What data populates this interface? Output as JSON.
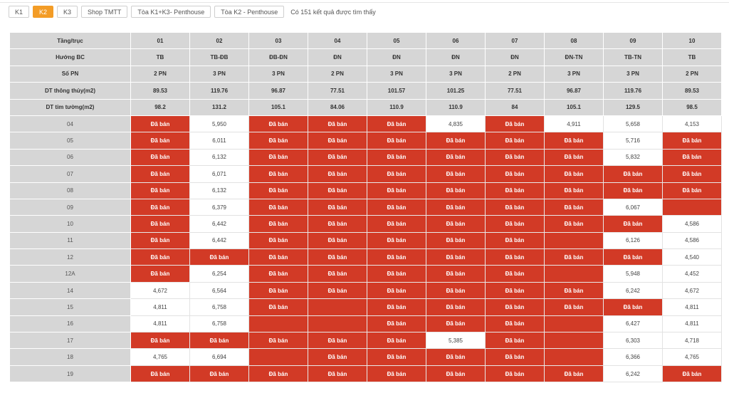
{
  "tabs": [
    "K1",
    "K2",
    "K3",
    "Shop TMTT",
    "Tòa K1+K3- Penthouse",
    "Tòa K2 - Penthouse"
  ],
  "active_tab": 1,
  "result_text": "Có 151 kết quả được tìm thấy",
  "sold_label": "Đã bán",
  "colors": {
    "sold": "#d23a26",
    "active_tab": "#f39c26",
    "header_bg": "#d6d6d6"
  },
  "header_rows": [
    [
      "Tầng/trục",
      "01",
      "02",
      "03",
      "04",
      "05",
      "06",
      "07",
      "08",
      "09",
      "10"
    ],
    [
      "Hướng BC",
      "TB",
      "TB-ĐB",
      "ĐB-ĐN",
      "ĐN",
      "ĐN",
      "ĐN",
      "ĐN",
      "ĐN-TN",
      "TB-TN",
      "TB"
    ],
    [
      "Số PN",
      "2 PN",
      "3 PN",
      "3 PN",
      "2 PN",
      "3 PN",
      "3 PN",
      "2 PN",
      "3 PN",
      "3 PN",
      "2 PN"
    ],
    [
      "DT thông thủy(m2)",
      "89.53",
      "119.76",
      "96.87",
      "77.51",
      "101.57",
      "101.25",
      "77.51",
      "96.87",
      "119.76",
      "89.53"
    ],
    [
      "DT tim tường(m2)",
      "98.2",
      "131.2",
      "105.1",
      "84.06",
      "110.9",
      "110.9",
      "84",
      "105.1",
      "129.5",
      "98.5"
    ]
  ],
  "floors": [
    {
      "floor": "04",
      "cells": [
        "S",
        "5,950",
        "S",
        "S",
        "S",
        "4,835",
        "S",
        "4,911",
        "5,658",
        "4,153"
      ]
    },
    {
      "floor": "05",
      "cells": [
        "S",
        "6,011",
        "S",
        "S",
        "S",
        "S",
        "S",
        "S",
        "5,716",
        "S"
      ]
    },
    {
      "floor": "06",
      "cells": [
        "S",
        "6,132",
        "S",
        "S",
        "S",
        "S",
        "S",
        "S",
        "5,832",
        "S"
      ]
    },
    {
      "floor": "07",
      "cells": [
        "S",
        "6,071",
        "S",
        "S",
        "S",
        "S",
        "S",
        "S",
        "S",
        "S"
      ]
    },
    {
      "floor": "08",
      "cells": [
        "S",
        "6,132",
        "S",
        "S",
        "S",
        "S",
        "S",
        "S",
        "S",
        "S"
      ]
    },
    {
      "floor": "09",
      "cells": [
        "S",
        "6,379",
        "S",
        "S",
        "S",
        "S",
        "S",
        "S",
        "6,067",
        ""
      ]
    },
    {
      "floor": "10",
      "cells": [
        "S",
        "6,442",
        "S",
        "S",
        "S",
        "S",
        "S",
        "S",
        "S",
        "4,586"
      ]
    },
    {
      "floor": "11",
      "cells": [
        "S",
        "6,442",
        "S",
        "S",
        "S",
        "S",
        "S",
        "",
        "6,126",
        "4,586"
      ]
    },
    {
      "floor": "12",
      "cells": [
        "S",
        "S",
        "S",
        "S",
        "S",
        "S",
        "S",
        "S",
        "S",
        "4,540"
      ]
    },
    {
      "floor": "12A",
      "cells": [
        "S",
        "6,254",
        "S",
        "S",
        "S",
        "S",
        "S",
        "",
        "5,948",
        "4,452"
      ]
    },
    {
      "floor": "14",
      "cells": [
        "4,672",
        "6,564",
        "S",
        "S",
        "S",
        "S",
        "S",
        "S",
        "6,242",
        "4,672"
      ]
    },
    {
      "floor": "15",
      "cells": [
        "4,811",
        "6,758",
        "S",
        "",
        "S",
        "S",
        "S",
        "S",
        "S",
        "4,811"
      ]
    },
    {
      "floor": "16",
      "cells": [
        "4,811",
        "6,758",
        "",
        "",
        "S",
        "S",
        "S",
        "",
        "6,427",
        "4,811"
      ]
    },
    {
      "floor": "17",
      "cells": [
        "S",
        "S",
        "S",
        "S",
        "S",
        "5,385",
        "S",
        "",
        "6,303",
        "4,718"
      ]
    },
    {
      "floor": "18",
      "cells": [
        "4,765",
        "6,694",
        "",
        "S",
        "S",
        "S",
        "S",
        "",
        "6,366",
        "4,765"
      ]
    },
    {
      "floor": "19",
      "cells": [
        "S",
        "S",
        "S",
        "S",
        "S",
        "S",
        "S",
        "S",
        "6,242",
        "S"
      ]
    }
  ]
}
